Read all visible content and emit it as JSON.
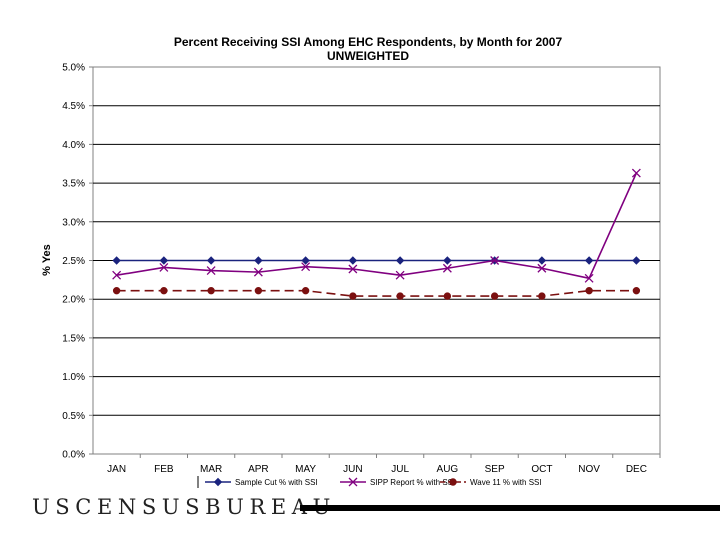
{
  "chart_data": {
    "type": "line",
    "title": "Percent Receiving SSI Among EHC Respondents, by Month for 2007",
    "subtitle": "UNWEIGHTED",
    "xlabel": "",
    "ylabel": "% Yes",
    "ylim": [
      0,
      5.0
    ],
    "yticks": [
      "0.0%",
      "0.5%",
      "1.0%",
      "1.5%",
      "2.0%",
      "2.5%",
      "3.0%",
      "3.5%",
      "4.0%",
      "4.5%",
      "5.0%"
    ],
    "categories": [
      "JAN",
      "FEB",
      "MAR",
      "APR",
      "MAY",
      "JUN",
      "JUL",
      "AUG",
      "SEP",
      "OCT",
      "NOV",
      "DEC"
    ],
    "grid": "horizontal",
    "legend": "bottom",
    "series": [
      {
        "name": "Sample Cut % with SSI",
        "values": [
          2.5,
          2.5,
          2.5,
          2.5,
          2.5,
          2.5,
          2.5,
          2.5,
          2.5,
          2.5,
          2.5,
          2.5
        ],
        "color": "#1a237e",
        "marker": "diamond",
        "dash": "solid"
      },
      {
        "name": "SIPP Report % with SSI",
        "values": [
          2.31,
          2.41,
          2.37,
          2.35,
          2.42,
          2.39,
          2.31,
          2.4,
          2.5,
          2.4,
          2.27,
          3.63
        ],
        "color": "#800080",
        "marker": "x",
        "dash": "solid"
      },
      {
        "name": "Wave 11 % with SSI",
        "values": [
          2.11,
          2.11,
          2.11,
          2.11,
          2.11,
          2.04,
          2.04,
          2.04,
          2.04,
          2.04,
          2.11,
          2.11
        ],
        "color": "#7b1010",
        "marker": "circle",
        "dash": "dashed"
      }
    ]
  },
  "footer": {
    "agency": "USCENSUSBUREAU"
  }
}
